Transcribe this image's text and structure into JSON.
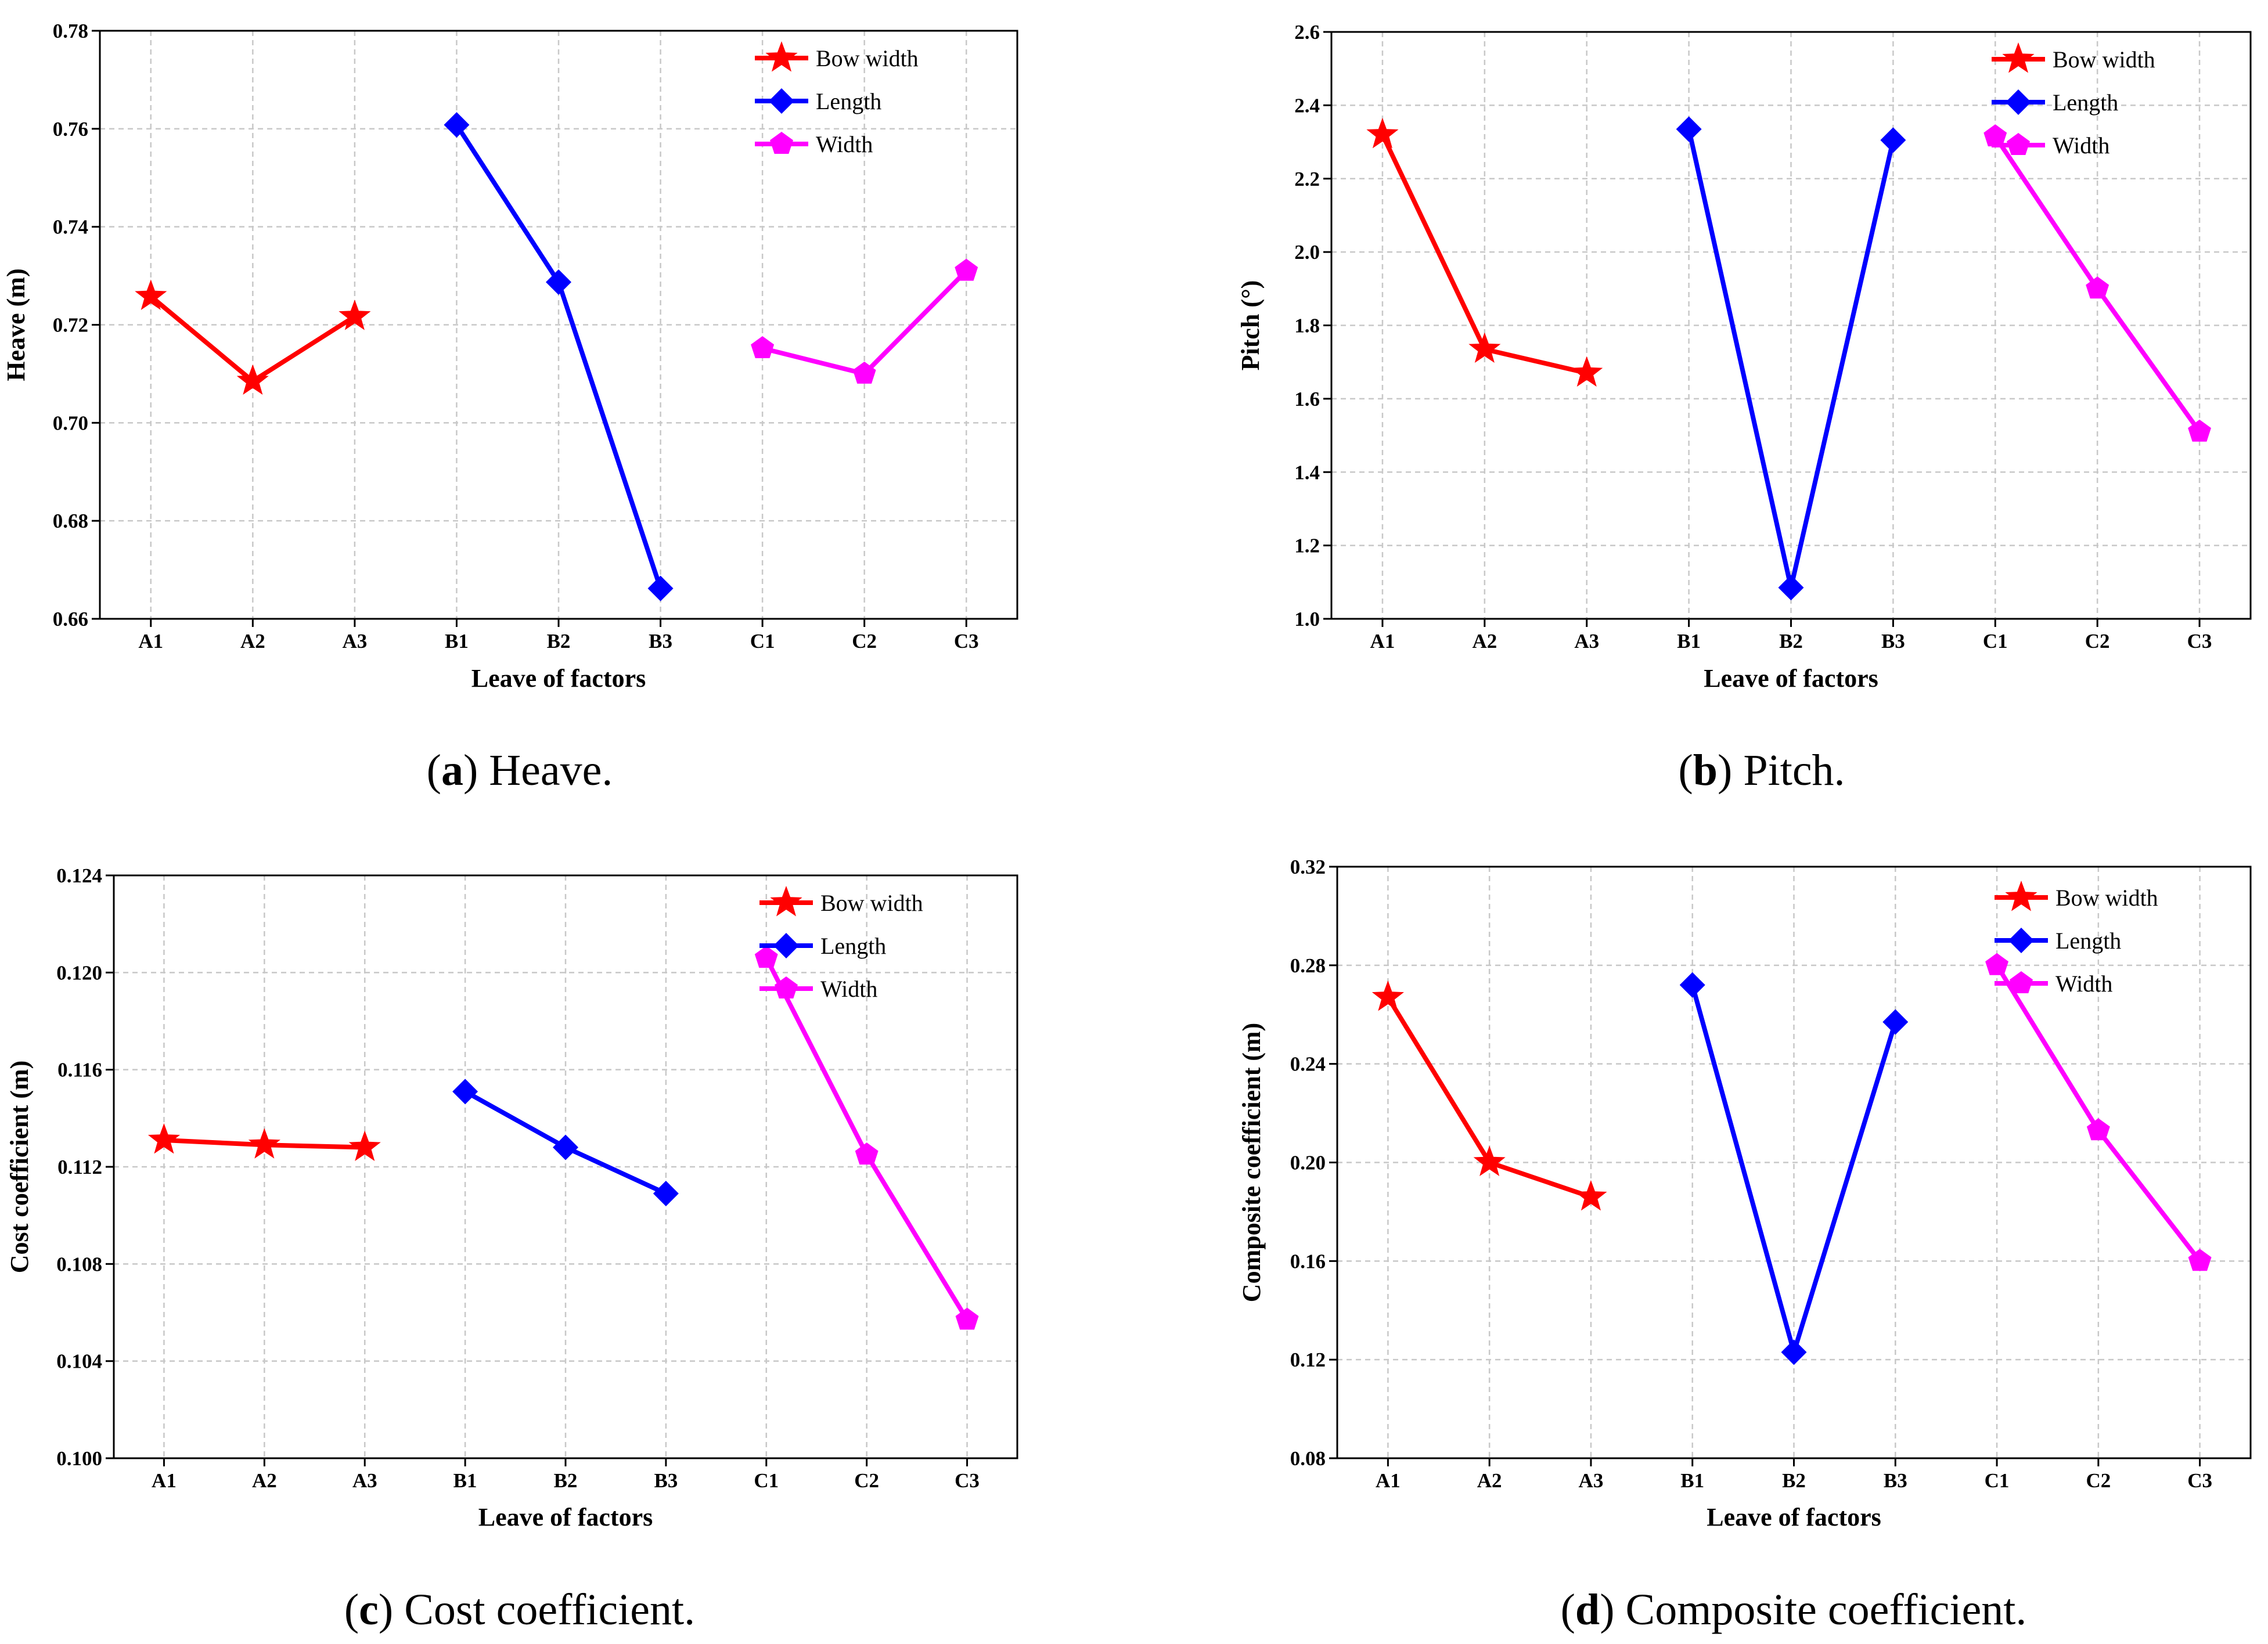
{
  "legend_items": [
    {
      "key": "bow_width",
      "label": "Bow width",
      "color": "#ff0000",
      "marker": "star"
    },
    {
      "key": "length",
      "label": "Length",
      "color": "#0000ff",
      "marker": "diamond"
    },
    {
      "key": "width",
      "label": "Width",
      "color": "#ff00ff",
      "marker": "pentagon"
    }
  ],
  "chart_data": [
    {
      "type": "line",
      "caption": {
        "prefix": "(",
        "letter": "a",
        "suffix": ") Heave."
      },
      "xlabel": "Leave of factors",
      "ylabel": "Heave (m)",
      "categories": [
        "A1",
        "A2",
        "A3",
        "B1",
        "B2",
        "B3",
        "C1",
        "C2",
        "C3"
      ],
      "ylim": [
        0.66,
        0.78
      ],
      "yticks": [
        "0.66",
        "0.68",
        "0.70",
        "0.72",
        "0.74",
        "0.76",
        "0.78"
      ],
      "grid": true,
      "legend_position": "top-right",
      "series": [
        {
          "name": "Bow width",
          "x": [
            "A1",
            "A2",
            "A3"
          ],
          "values": [
            0.7258,
            0.7085,
            0.7217
          ]
        },
        {
          "name": "Length",
          "x": [
            "B1",
            "B2",
            "B3"
          ],
          "values": [
            0.7608,
            0.7287,
            0.6662
          ]
        },
        {
          "name": "Width",
          "x": [
            "C1",
            "C2",
            "C3"
          ],
          "values": [
            0.7152,
            0.71,
            0.731
          ]
        }
      ]
    },
    {
      "type": "line",
      "caption": {
        "prefix": "(",
        "letter": "b",
        "suffix": ") Pitch."
      },
      "xlabel": "Leave of factors",
      "ylabel": "Pitch (°)",
      "categories": [
        "A1",
        "A2",
        "A3",
        "B1",
        "B2",
        "B3",
        "C1",
        "C2",
        "C3"
      ],
      "ylim": [
        1.0,
        2.6
      ],
      "yticks": [
        "1.0",
        "1.2",
        "1.4",
        "1.6",
        "1.8",
        "2.0",
        "2.2",
        "2.4",
        "2.6"
      ],
      "grid": true,
      "legend_position": "top-right",
      "series": [
        {
          "name": "Bow width",
          "x": [
            "A1",
            "A2",
            "A3"
          ],
          "values": [
            2.32,
            1.735,
            1.67
          ]
        },
        {
          "name": "Length",
          "x": [
            "B1",
            "B2",
            "B3"
          ],
          "values": [
            2.335,
            1.085,
            2.305
          ]
        },
        {
          "name": "Width",
          "x": [
            "C1",
            "C2",
            "C3"
          ],
          "values": [
            2.315,
            1.9,
            1.51
          ]
        }
      ]
    },
    {
      "type": "line",
      "caption": {
        "prefix": "(",
        "letter": "c",
        "suffix": ") Cost coefficient."
      },
      "xlabel": "Leave of factors",
      "ylabel": "Cost coefficient (m)",
      "categories": [
        "A1",
        "A2",
        "A3",
        "B1",
        "B2",
        "B3",
        "C1",
        "C2",
        "C3"
      ],
      "ylim": [
        0.1,
        0.124
      ],
      "yticks": [
        "0.100",
        "0.104",
        "0.108",
        "0.112",
        "0.116",
        "0.120",
        "0.124"
      ],
      "grid": true,
      "legend_position": "top-right",
      "series": [
        {
          "name": "Bow width",
          "x": [
            "A1",
            "A2",
            "A3"
          ],
          "values": [
            0.1131,
            0.1129,
            0.1128
          ]
        },
        {
          "name": "Length",
          "x": [
            "B1",
            "B2",
            "B3"
          ],
          "values": [
            0.1151,
            0.1128,
            0.1109
          ]
        },
        {
          "name": "Width",
          "x": [
            "C1",
            "C2",
            "C3"
          ],
          "values": [
            0.1206,
            0.1125,
            0.1057
          ]
        }
      ]
    },
    {
      "type": "line",
      "caption": {
        "prefix": "(",
        "letter": "d",
        "suffix": ") Composite coefficient."
      },
      "xlabel": "Leave of factors",
      "ylabel": "Composite coefficient (m)",
      "categories": [
        "A1",
        "A2",
        "A3",
        "B1",
        "B2",
        "B3",
        "C1",
        "C2",
        "C3"
      ],
      "ylim": [
        0.08,
        0.32
      ],
      "yticks": [
        "0.08",
        "0.12",
        "0.16",
        "0.20",
        "0.24",
        "0.28",
        "0.32"
      ],
      "grid": true,
      "legend_position": "top-right",
      "series": [
        {
          "name": "Bow width",
          "x": [
            "A1",
            "A2",
            "A3"
          ],
          "values": [
            0.267,
            0.2,
            0.186
          ]
        },
        {
          "name": "Length",
          "x": [
            "B1",
            "B2",
            "B3"
          ],
          "values": [
            0.272,
            0.123,
            0.257
          ]
        },
        {
          "name": "Width",
          "x": [
            "C1",
            "C2",
            "C3"
          ],
          "values": [
            0.28,
            0.213,
            0.16
          ]
        }
      ]
    }
  ]
}
